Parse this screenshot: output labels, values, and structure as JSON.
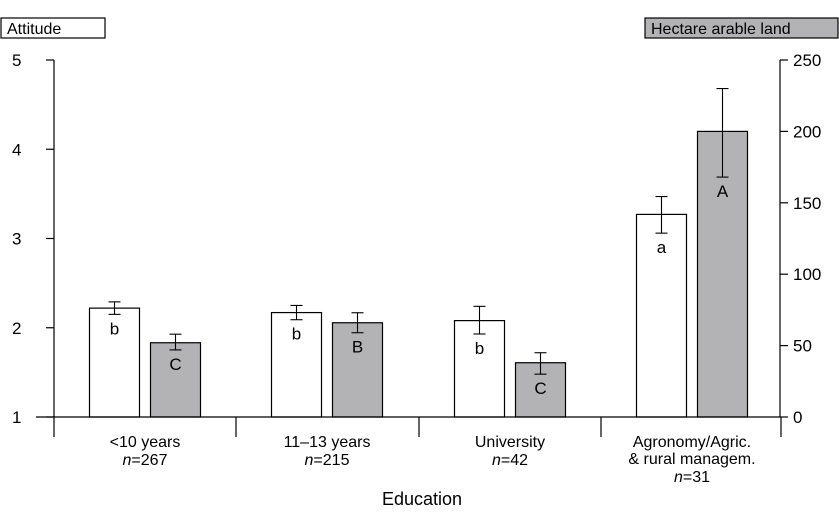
{
  "chart_data": {
    "type": "bar",
    "xlabel": "Education",
    "left_axis": {
      "label": "Attitude",
      "ylim": [
        1,
        5
      ],
      "ticks": [
        1,
        2,
        3,
        4,
        5
      ]
    },
    "right_axis": {
      "label": "Hectare arable land",
      "ylim": [
        0,
        250
      ],
      "ticks": [
        0,
        50,
        100,
        150,
        200,
        250
      ]
    },
    "categories": [
      {
        "lines": [
          "<10 years"
        ],
        "n_prefix": "n",
        "n_value": "=267"
      },
      {
        "lines": [
          "11–13 years"
        ],
        "n_prefix": "n",
        "n_value": "=215"
      },
      {
        "lines": [
          "University"
        ],
        "n_prefix": "n",
        "n_value": "=42"
      },
      {
        "lines": [
          "Agronomy/Agric.",
          "& rural managem."
        ],
        "n_prefix": "n",
        "n_value": "=31"
      }
    ],
    "series": [
      {
        "name": "Attitude",
        "axis": "left",
        "color": "#ffffff",
        "values": [
          2.22,
          2.17,
          2.08,
          3.27
        ],
        "err_low": [
          2.15,
          2.09,
          1.93,
          3.06
        ],
        "err_high": [
          2.29,
          2.25,
          2.24,
          3.47
        ],
        "letters": [
          "b",
          "b",
          "b",
          "a"
        ]
      },
      {
        "name": "Hectare arable land",
        "axis": "right",
        "color": "#b3b3b5",
        "values": [
          52,
          66,
          38,
          200
        ],
        "err_low": [
          47,
          59,
          30,
          168
        ],
        "err_high": [
          58,
          73,
          45,
          230
        ],
        "letters": [
          "C",
          "B",
          "C",
          "A"
        ]
      }
    ]
  }
}
